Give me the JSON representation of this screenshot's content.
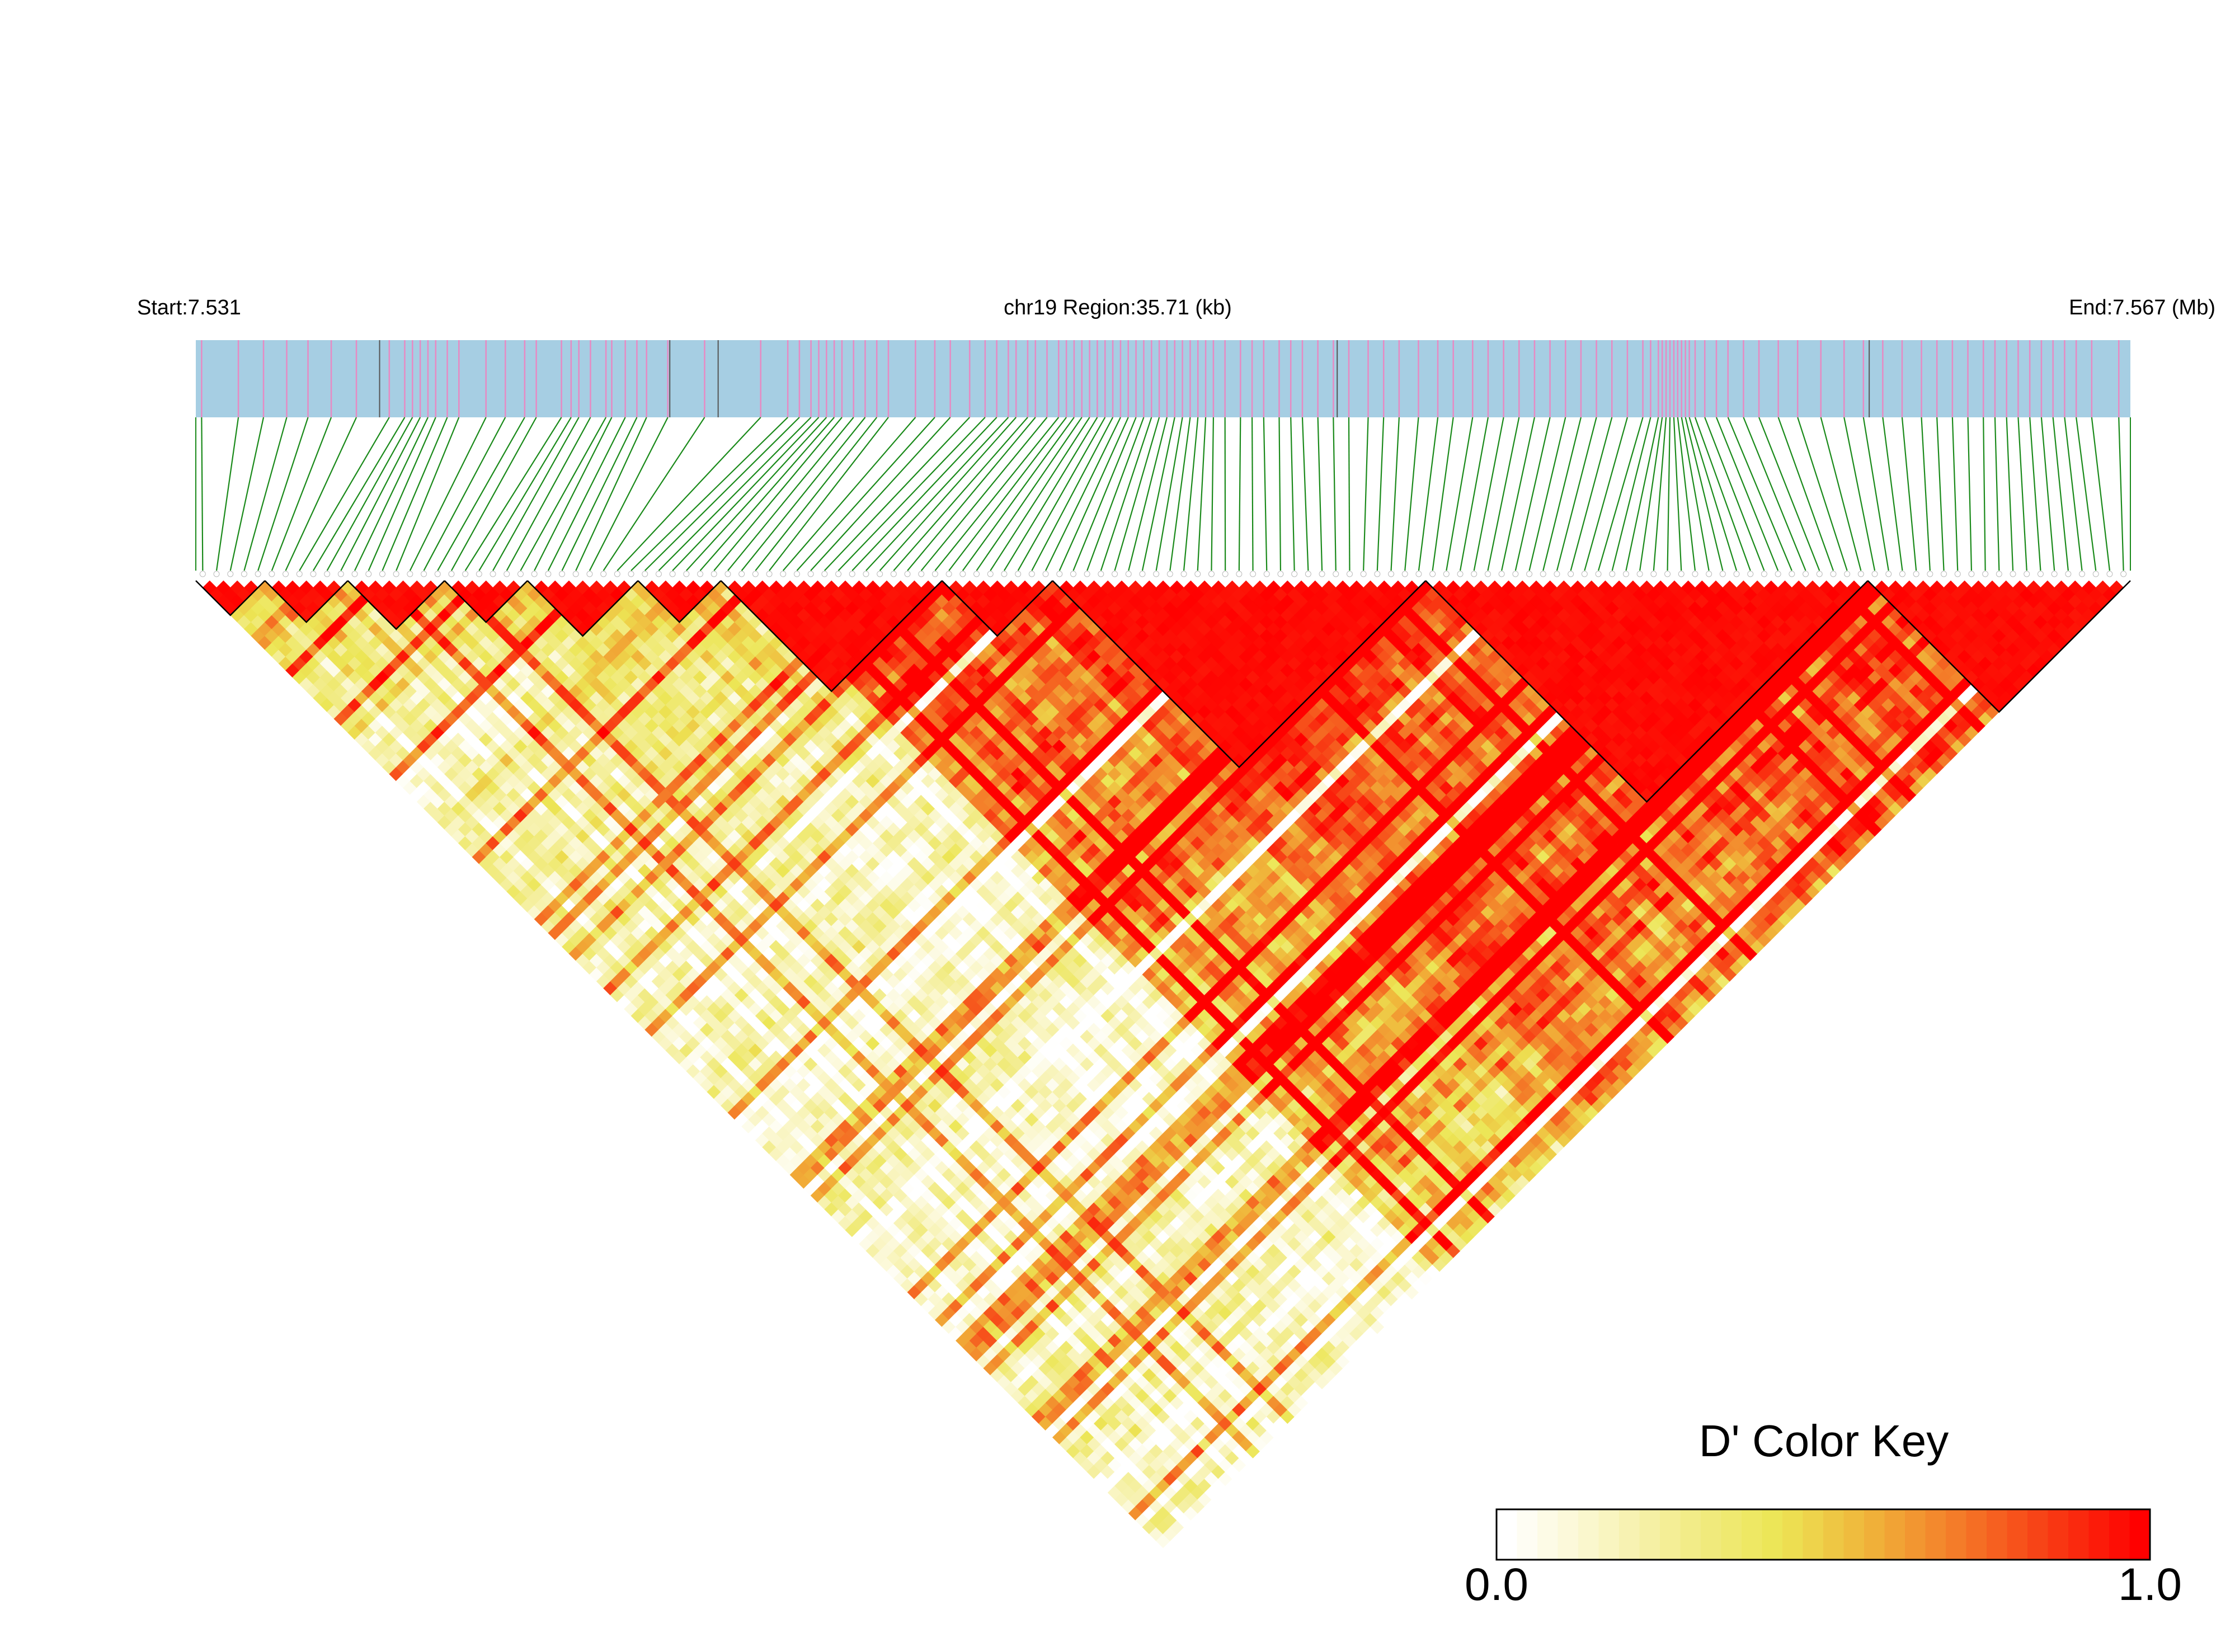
{
  "header": {
    "start_label": "Start:7.531",
    "region_label": "chr19 Region:35.71 (kb)",
    "end_label": "End:7.567 (Mb)"
  },
  "colors": {
    "gene_track_bg": "#a6cee3",
    "snp_tick": "#e78ac3",
    "gene_boundary": "#555555",
    "connector_line": "#1a8a1a",
    "block_outline": "#000000",
    "ld_low": "#ffffff",
    "ld_mid": "#ece655",
    "ld_high": "#ff0000"
  },
  "color_key": {
    "title": "D' Color Key",
    "min_label": "0.0",
    "max_label": "1.0",
    "steps": 32,
    "gradient": [
      "#ffffff",
      "#faf6c8",
      "#f2ec8a",
      "#ece655",
      "#f0b43a",
      "#f47a28",
      "#f83c14",
      "#ff0000"
    ]
  },
  "chart_data": {
    "type": "heatmap",
    "description_title": "D' Color Key",
    "chromosome": "chr19",
    "start_mb": 7.531,
    "end_mb": 7.567,
    "region_kb": 35.71,
    "snp_count": 140,
    "value_range": [
      0.0,
      1.0
    ],
    "ld_blocks": [
      {
        "from_snp": 0,
        "to_snp": 4
      },
      {
        "from_snp": 5,
        "to_snp": 10
      },
      {
        "from_snp": 11,
        "to_snp": 17
      },
      {
        "from_snp": 18,
        "to_snp": 23
      },
      {
        "from_snp": 24,
        "to_snp": 31
      },
      {
        "from_snp": 32,
        "to_snp": 37
      },
      {
        "from_snp": 38,
        "to_snp": 53
      },
      {
        "from_snp": 54,
        "to_snp": 61
      },
      {
        "from_snp": 62,
        "to_snp": 88
      },
      {
        "from_snp": 89,
        "to_snp": 120
      },
      {
        "from_snp": 121,
        "to_snp": 139
      }
    ],
    "snp_positions_frac": [
      0.003,
      0.022,
      0.035,
      0.047,
      0.058,
      0.07,
      0.083,
      0.1,
      0.108,
      0.112,
      0.116,
      0.12,
      0.124,
      0.13,
      0.136,
      0.15,
      0.16,
      0.17,
      0.176,
      0.189,
      0.194,
      0.198,
      0.204,
      0.212,
      0.215,
      0.222,
      0.228,
      0.233,
      0.244,
      0.263,
      0.292,
      0.306,
      0.312,
      0.318,
      0.322,
      0.326,
      0.33,
      0.334,
      0.34,
      0.346,
      0.352,
      0.358,
      0.372,
      0.382,
      0.39,
      0.4,
      0.408,
      0.414,
      0.42,
      0.424,
      0.43,
      0.434,
      0.44,
      0.446,
      0.45,
      0.454,
      0.458,
      0.462,
      0.466,
      0.47,
      0.474,
      0.478,
      0.482,
      0.486,
      0.49,
      0.494,
      0.498,
      0.502,
      0.506,
      0.51,
      0.514,
      0.518,
      0.522,
      0.526,
      0.532,
      0.54,
      0.546,
      0.552,
      0.56,
      0.566,
      0.572,
      0.58,
      0.588,
      0.596,
      0.606,
      0.614,
      0.622,
      0.632,
      0.642,
      0.65,
      0.66,
      0.668,
      0.676,
      0.684,
      0.692,
      0.7,
      0.708,
      0.716,
      0.724,
      0.732,
      0.74,
      0.748,
      0.752,
      0.756,
      0.758,
      0.76,
      0.762,
      0.764,
      0.766,
      0.768,
      0.77,
      0.772,
      0.775,
      0.78,
      0.786,
      0.792,
      0.8,
      0.808,
      0.818,
      0.828,
      0.84,
      0.852,
      0.862,
      0.872,
      0.882,
      0.892,
      0.9,
      0.908,
      0.916,
      0.924,
      0.93,
      0.936,
      0.942,
      0.948,
      0.954,
      0.96,
      0.966,
      0.972,
      0.98,
      0.994
    ]
  }
}
